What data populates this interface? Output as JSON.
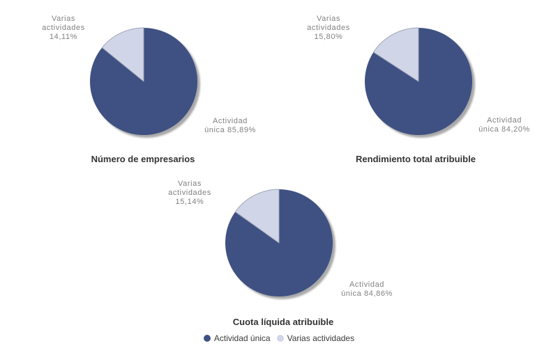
{
  "page": {
    "background": "#FFFFFF"
  },
  "colors": {
    "actividad_unica": "#3F5182",
    "varias_actividades": "#D1D5E8",
    "slice_outline": "#9FA5B8",
    "shadow": "#9B9B9B",
    "label_text": "#808080",
    "title_text": "#333333",
    "legend_text": "#3A3A3A"
  },
  "legend": {
    "position": "bottom-center",
    "items": [
      {
        "label": "Actividad única",
        "color": "#3F5182"
      },
      {
        "label": "Varias actividades",
        "color": "#D1D5E8"
      }
    ]
  },
  "chart_data": [
    {
      "type": "pie",
      "title": "Número de empresarios",
      "start_angle_deg": 0,
      "direction": "clockwise",
      "slices": [
        {
          "label": "Actividad única",
          "value": 85.89,
          "display": [
            "Actividad",
            "única 85,89%"
          ],
          "color": "#3F5182"
        },
        {
          "label": "Varias actividades",
          "value": 14.11,
          "display": [
            "Varias",
            "actividades",
            "14,11%"
          ],
          "color": "#D1D5E8",
          "stroke": "#9FA5B8"
        }
      ]
    },
    {
      "type": "pie",
      "title": "Rendimiento total atribuible",
      "start_angle_deg": 0,
      "direction": "clockwise",
      "slices": [
        {
          "label": "Actividad única",
          "value": 84.2,
          "display": [
            "Actividad",
            "única 84,20%"
          ],
          "color": "#3F5182"
        },
        {
          "label": "Varias actividades",
          "value": 15.8,
          "display": [
            "Varias",
            "actividades",
            "15,80%"
          ],
          "color": "#D1D5E8",
          "stroke": "#9FA5B8"
        }
      ]
    },
    {
      "type": "pie",
      "title": "Cuota líquida atribuible",
      "start_angle_deg": 0,
      "direction": "clockwise",
      "slices": [
        {
          "label": "Actividad única",
          "value": 84.86,
          "display": [
            "Actividad",
            "única 84,86%"
          ],
          "color": "#3F5182"
        },
        {
          "label": "Varias actividades",
          "value": 15.14,
          "display": [
            "Varias",
            "actividades",
            "15,14%"
          ],
          "color": "#D1D5E8",
          "stroke": "#9FA5B8"
        }
      ]
    }
  ]
}
